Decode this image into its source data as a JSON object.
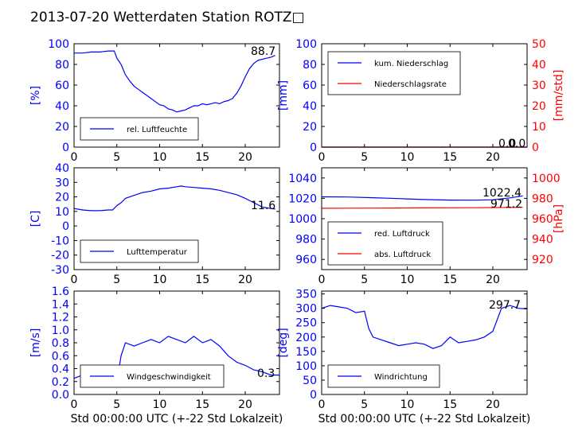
{
  "title": "2013-07-20 Wetterdaten Station ROTZ□",
  "colors": {
    "primary": "#0000ff",
    "secondary": "#ff0000",
    "axis": "#000000"
  },
  "chart_data": [
    {
      "id": "humidity",
      "type": "line",
      "xlim": [
        0,
        24
      ],
      "ylim": [
        0,
        100
      ],
      "xticks": [
        0,
        5,
        10,
        15,
        20
      ],
      "yticks": [
        0,
        20,
        40,
        60,
        80,
        100
      ],
      "ylabel": "[%]",
      "legend": {
        "entries": [
          "rel. Luftfeuchte"
        ],
        "placement": "lower-left"
      },
      "last_value_label": "88.7",
      "series": [
        {
          "name": "rel. Luftfeuchte",
          "color": "#0000ff",
          "x": [
            0,
            1,
            2,
            3,
            4,
            4.7,
            5,
            5.5,
            6,
            6.5,
            7,
            7.5,
            8,
            8.5,
            9,
            9.5,
            10,
            10.5,
            11,
            11.5,
            12,
            12.5,
            13,
            13.5,
            14,
            14.5,
            15,
            15.5,
            16,
            16.5,
            17,
            17.5,
            18,
            18.5,
            19,
            19.5,
            20,
            20.5,
            21,
            21.5,
            22,
            22.5,
            23,
            23.5
          ],
          "y": [
            91,
            91,
            92,
            92,
            93,
            93,
            86,
            80,
            70,
            64,
            59,
            56,
            53,
            50,
            47,
            44,
            41,
            40,
            37,
            36,
            34,
            35,
            36,
            38,
            40,
            40,
            42,
            41,
            42,
            43,
            42,
            44,
            45,
            47,
            52,
            59,
            68,
            76,
            81,
            84,
            85,
            86,
            87,
            88.7
          ]
        }
      ]
    },
    {
      "id": "precipitation",
      "type": "line",
      "xlim": [
        0,
        24
      ],
      "ylim": [
        0,
        100
      ],
      "y2lim": [
        0,
        50
      ],
      "xticks": [
        0,
        5,
        10,
        15,
        20
      ],
      "yticks": [
        0,
        20,
        40,
        60,
        80,
        100
      ],
      "y2ticks": [
        0,
        10,
        20,
        30,
        40,
        50
      ],
      "ylabel": "[mm]",
      "y2label": "[mm/std]",
      "legend": {
        "entries": [
          "kum. Niederschlag",
          "Niederschlagsrate"
        ],
        "placement": "upper-left"
      },
      "last_value_label": "0.0",
      "last_value_label_2": "0.0",
      "series": [
        {
          "name": "kum. Niederschlag",
          "color": "#0000ff",
          "axis": "left",
          "x": [
            0,
            24
          ],
          "y": [
            0,
            0
          ]
        },
        {
          "name": "Niederschlagsrate",
          "color": "#ff0000",
          "axis": "right",
          "x": [
            0,
            24
          ],
          "y": [
            0,
            0
          ]
        }
      ]
    },
    {
      "id": "temperature",
      "type": "line",
      "xlim": [
        0,
        24
      ],
      "ylim": [
        -30,
        40
      ],
      "xticks": [
        0,
        5,
        10,
        15,
        20
      ],
      "yticks": [
        -30,
        -20,
        -10,
        0,
        10,
        20,
        30,
        40
      ],
      "ylabel": "[C]",
      "legend": {
        "entries": [
          "Lufttemperatur"
        ],
        "placement": "lower-left"
      },
      "last_value_label": "11.6",
      "series": [
        {
          "name": "Lufttemperatur",
          "color": "#0000ff",
          "x": [
            0,
            1,
            2,
            3,
            4,
            4.5,
            5,
            5.5,
            6,
            7,
            8,
            9,
            10,
            11,
            12,
            12.5,
            13,
            14,
            15,
            16,
            17,
            18,
            19,
            20,
            21,
            22,
            23,
            23.5
          ],
          "y": [
            12,
            11,
            10.5,
            10.5,
            11,
            11,
            14,
            16,
            19,
            21,
            23,
            24,
            25.5,
            26,
            27,
            27.5,
            27,
            26.5,
            26,
            25.5,
            24.5,
            23,
            21.5,
            19,
            16,
            13,
            12,
            11.6
          ]
        }
      ]
    },
    {
      "id": "pressure",
      "type": "line",
      "xlim": [
        0,
        24
      ],
      "ylim": [
        950,
        1050
      ],
      "y2lim": [
        910,
        1010
      ],
      "xticks": [
        0,
        5,
        10,
        15,
        20
      ],
      "yticks": [
        960,
        980,
        1000,
        1020,
        1040
      ],
      "y2ticks": [
        920,
        940,
        960,
        980,
        1000
      ],
      "y2label": "[hPa]",
      "legend": {
        "entries": [
          "red. Luftdruck",
          "abs. Luftdruck"
        ],
        "placement": "lower-left"
      },
      "last_value_label": "1022.4",
      "last_value_label_2": "971.2",
      "series": [
        {
          "name": "red. Luftdruck",
          "color": "#0000ff",
          "axis": "left",
          "x": [
            0,
            3,
            6,
            9,
            12,
            15,
            18,
            20,
            22,
            23.5
          ],
          "y": [
            1021.5,
            1021.3,
            1020.6,
            1019.8,
            1018.8,
            1018.3,
            1018.2,
            1018.6,
            1020.5,
            1022.4
          ]
        },
        {
          "name": "abs. Luftdruck",
          "color": "#ff0000",
          "axis": "right",
          "x": [
            0,
            3,
            6,
            9,
            12,
            15,
            18,
            20,
            22,
            23.5
          ],
          "y": [
            970.2,
            970.3,
            970.4,
            970.5,
            970.6,
            970.7,
            970.8,
            970.9,
            971.0,
            971.2
          ]
        }
      ]
    },
    {
      "id": "windspeed",
      "type": "line",
      "xlim": [
        0,
        24
      ],
      "ylim": [
        0,
        1.6
      ],
      "xticks": [
        0,
        5,
        10,
        15,
        20
      ],
      "yticks": [
        0.0,
        0.2,
        0.4,
        0.6,
        0.8,
        1.0,
        1.2,
        1.4,
        1.6
      ],
      "ylabel": "[m/s]",
      "xlabel": "Std 00:00:00 UTC (+-22 Std Lokalzeit)",
      "legend": {
        "entries": [
          "Windgeschwindigkeit"
        ],
        "placement": "lower-left"
      },
      "last_value_label": "0.3",
      "series": [
        {
          "name": "Windgeschwindigkeit",
          "color": "#0000ff",
          "x": [
            0,
            1,
            2,
            3,
            4,
            4.5,
            5,
            5.5,
            6,
            7,
            8,
            9,
            10,
            11,
            12,
            13,
            14,
            15,
            16,
            17,
            18,
            19,
            20,
            21,
            22,
            23,
            24
          ],
          "y": [
            0.25,
            0.3,
            0.3,
            0.22,
            0.18,
            0.12,
            0.2,
            0.6,
            0.8,
            0.75,
            0.8,
            0.85,
            0.8,
            0.9,
            0.85,
            0.8,
            0.9,
            0.8,
            0.85,
            0.75,
            0.6,
            0.5,
            0.45,
            0.38,
            0.35,
            0.3,
            0.3
          ]
        }
      ]
    },
    {
      "id": "winddirection",
      "type": "line",
      "xlim": [
        0,
        24
      ],
      "ylim": [
        0,
        360
      ],
      "xticks": [
        0,
        5,
        10,
        15,
        20
      ],
      "yticks": [
        0,
        50,
        100,
        150,
        200,
        250,
        300,
        350
      ],
      "ylabel": "[deg]",
      "xlabel": "Std 00:00:00 UTC (+-22 Std Lokalzeit)",
      "legend": {
        "entries": [
          "Windrichtung"
        ],
        "placement": "lower-left"
      },
      "last_value_label": "297.7",
      "series": [
        {
          "name": "Windrichtung",
          "color": "#0000ff",
          "x": [
            0,
            1,
            2,
            3,
            4,
            5,
            5.5,
            6,
            7,
            8,
            9,
            10,
            11,
            12,
            13,
            14,
            15,
            16,
            17,
            18,
            19,
            20,
            21,
            22,
            23,
            24
          ],
          "y": [
            300,
            310,
            305,
            300,
            285,
            290,
            230,
            200,
            190,
            180,
            170,
            175,
            180,
            175,
            160,
            170,
            200,
            180,
            185,
            190,
            200,
            220,
            300,
            310,
            300,
            297.7
          ]
        }
      ]
    }
  ]
}
